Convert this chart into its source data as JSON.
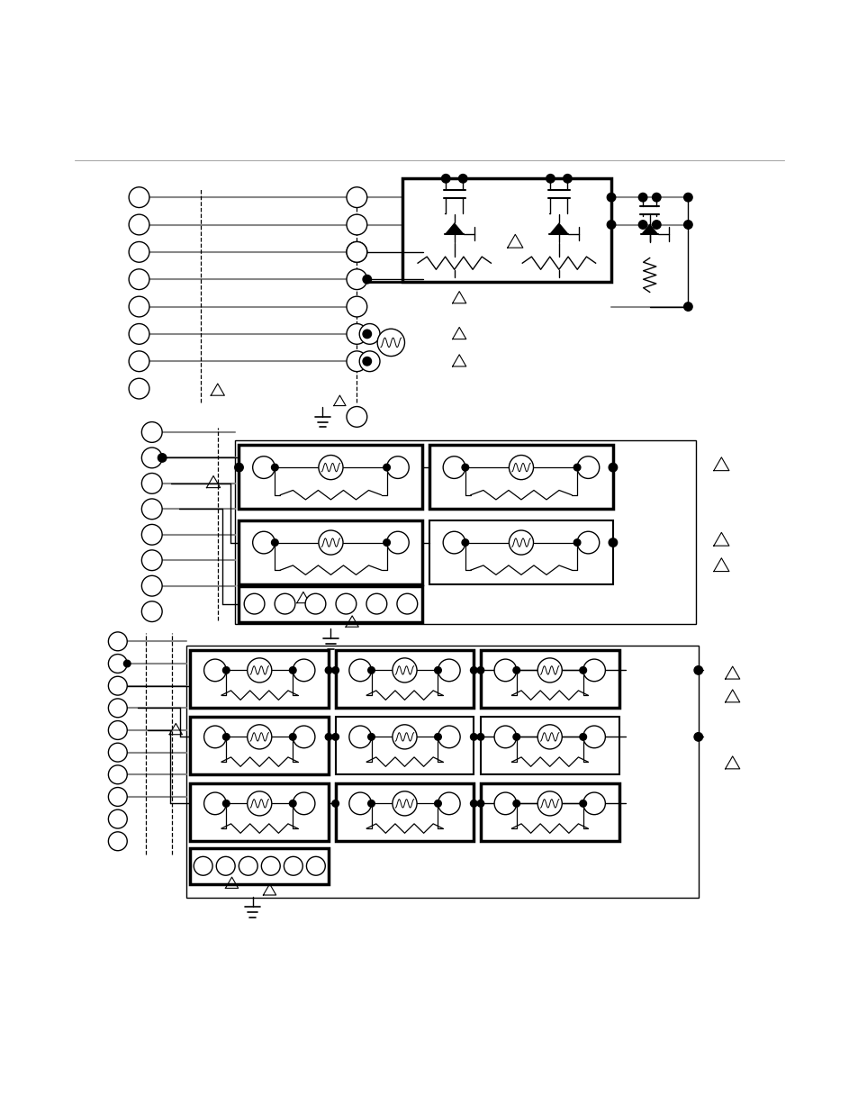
{
  "bg_color": "#ffffff",
  "figsize": [
    9.54,
    12.35
  ],
  "dpi": 100,
  "line_color": "#000000",
  "gray_color": "#888888",
  "thick_lw": 2.5,
  "thin_lw": 1.0,
  "gray_lw": 1.5,
  "circle_r": 0.013
}
